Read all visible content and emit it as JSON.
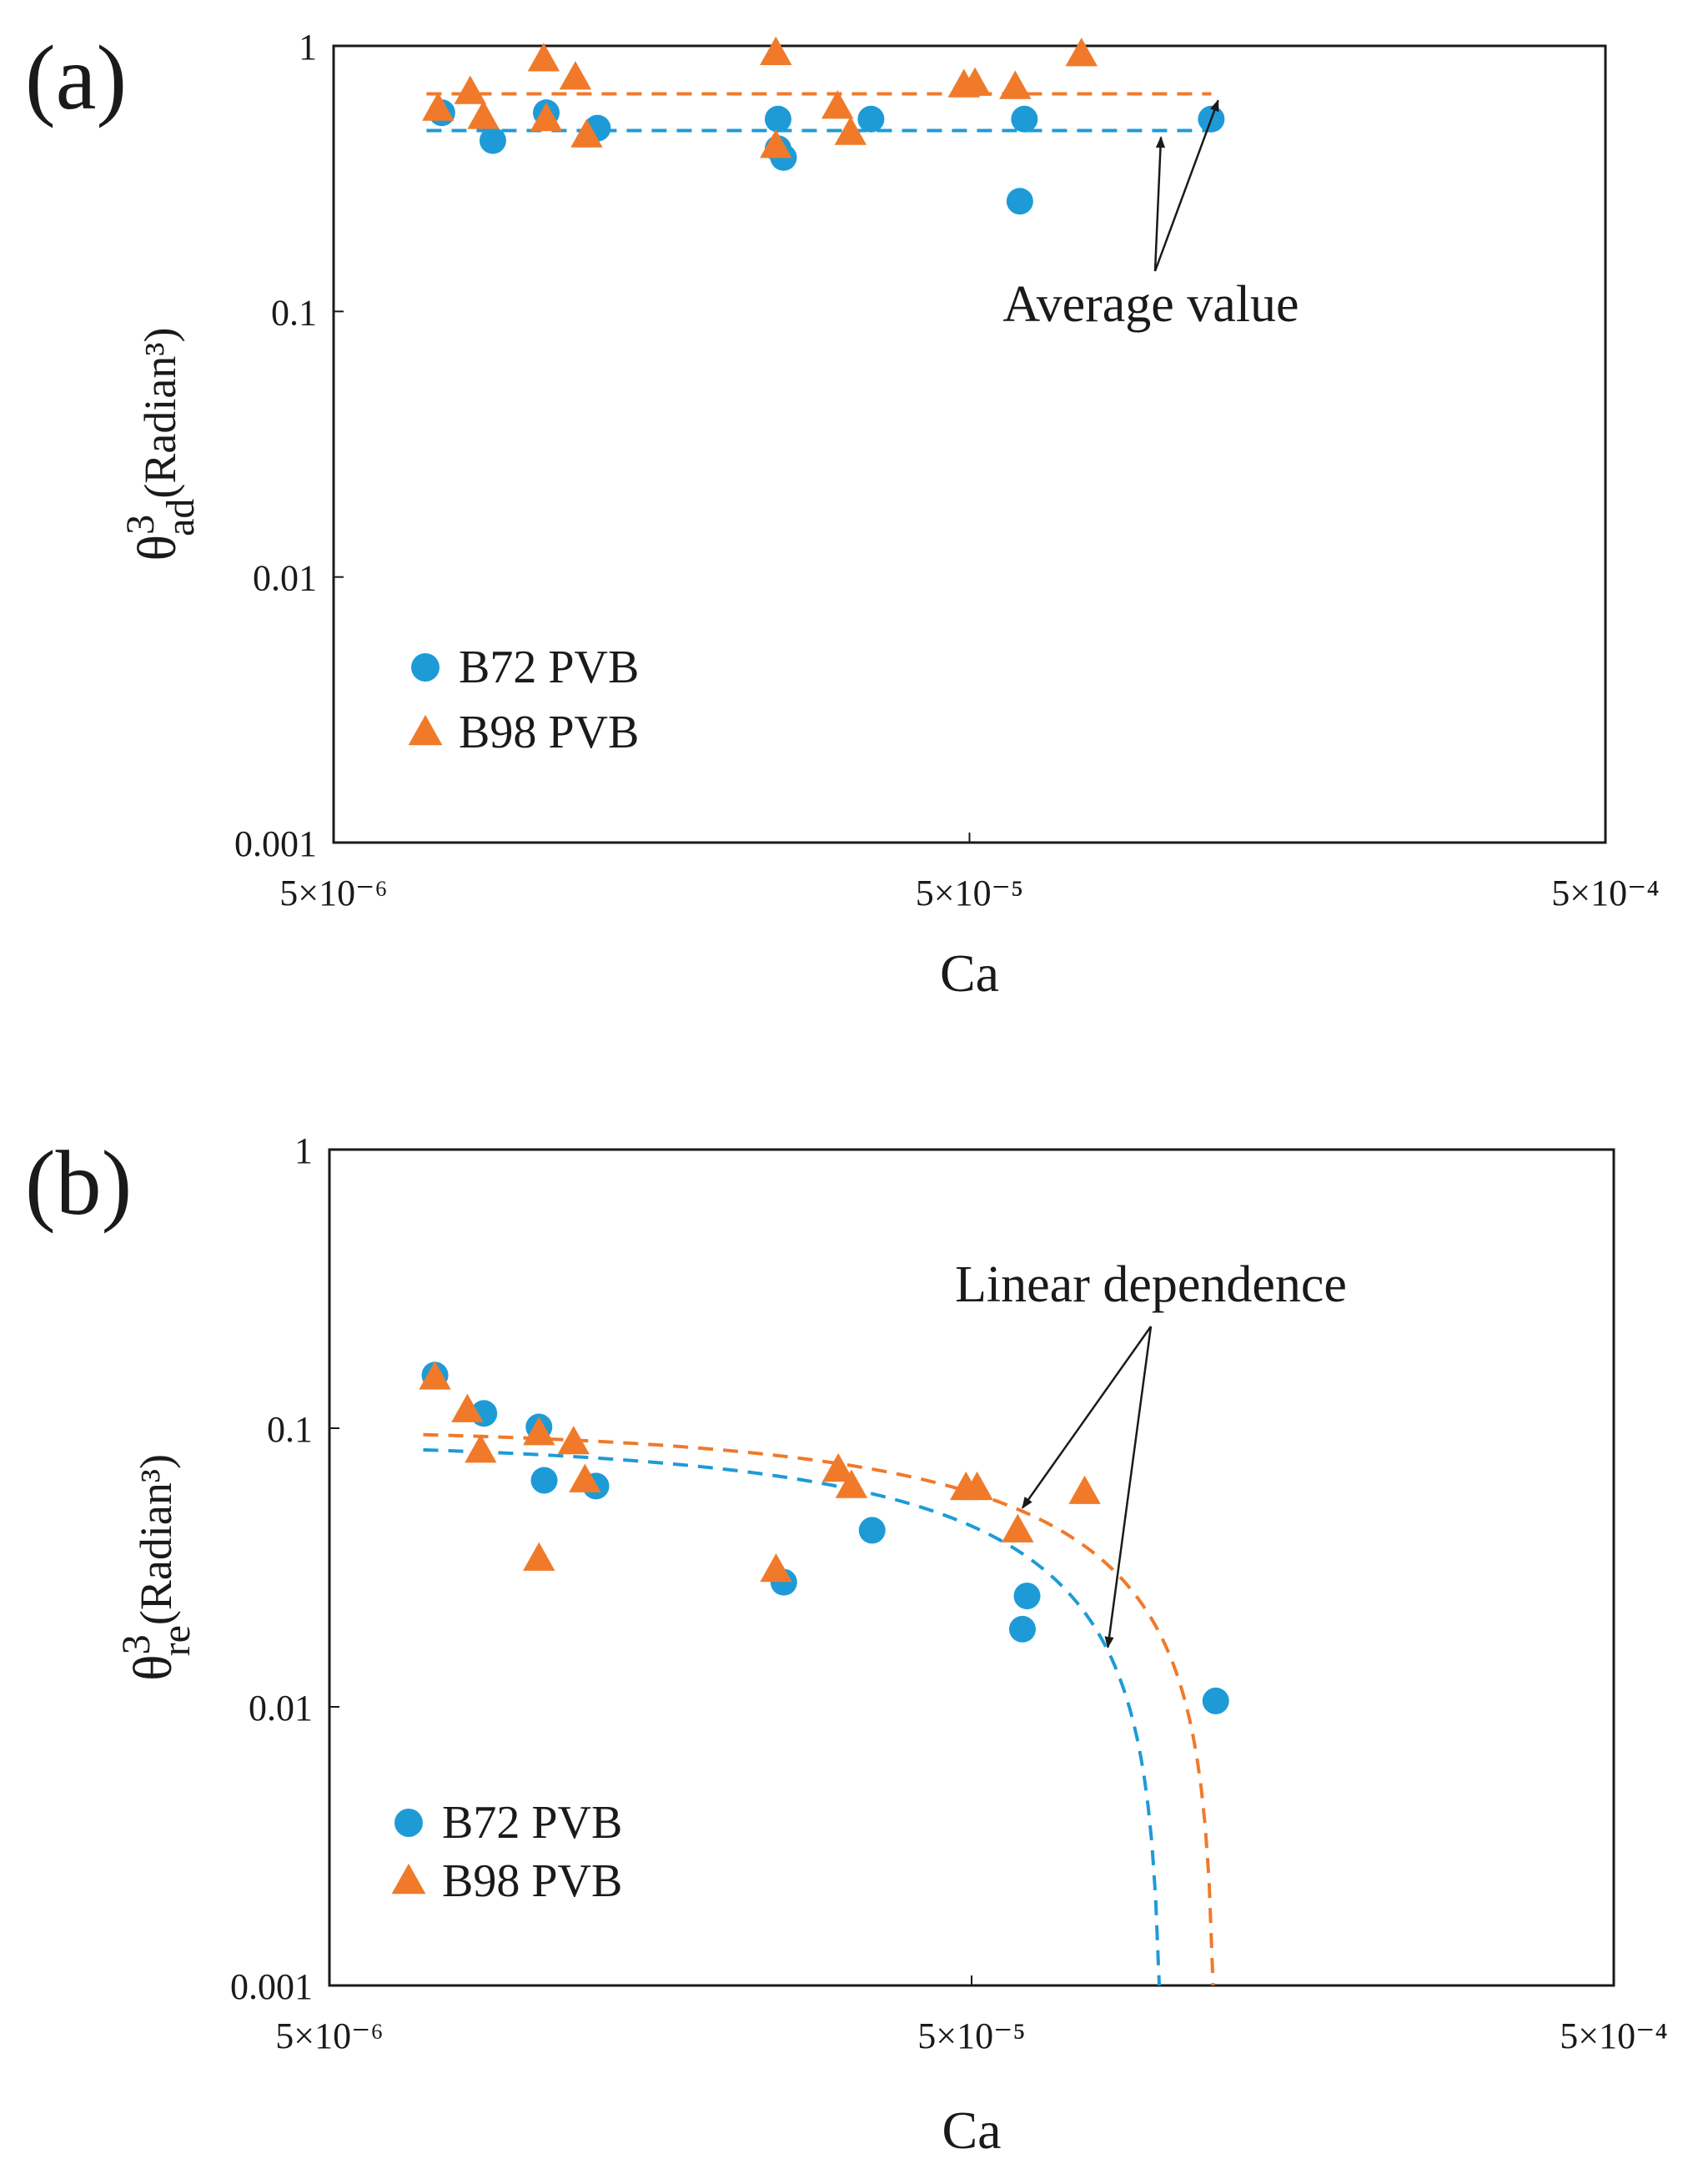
{
  "chart_data": [
    {
      "type": "scatter",
      "panel_label": "(a)",
      "xlabel": "Ca",
      "ylabel_main": "θ",
      "ylabel_sup": "3",
      "ylabel_sub": "ad",
      "ylabel_unit": "(Radian³)",
      "x_scale": "log",
      "y_scale": "log",
      "xlim": [
        5e-06,
        0.0005
      ],
      "ylim": [
        0.001,
        1
      ],
      "x_ticks": [
        {
          "value": 5e-06,
          "label": "5×10⁻⁶"
        },
        {
          "value": 5e-05,
          "label": "5×10⁻⁵"
        },
        {
          "value": 0.0005,
          "label": "5×10⁻⁴"
        }
      ],
      "y_ticks": [
        {
          "value": 1,
          "label": "1"
        },
        {
          "value": 0.1,
          "label": "0.1"
        },
        {
          "value": 0.01,
          "label": "0.01"
        },
        {
          "value": 0.001,
          "label": "0.001"
        }
      ],
      "legend_position": "bottom-left",
      "series": [
        {
          "name": "B72 PVB",
          "marker": "circle",
          "color": "#1e9bd7",
          "points": [
            [
              7.4e-06,
              0.56
            ],
            [
              8.9e-06,
              0.44
            ],
            [
              1.08e-05,
              0.56
            ],
            [
              1.3e-05,
              0.49
            ],
            [
              2.5e-05,
              0.53
            ],
            [
              2.5e-05,
              0.41
            ],
            [
              2.55e-05,
              0.38
            ],
            [
              3.5e-05,
              0.53
            ],
            [
              6.1e-05,
              0.53
            ],
            [
              6e-05,
              0.26
            ],
            [
              0.00012,
              0.53
            ]
          ]
        },
        {
          "name": "B98 PVB",
          "marker": "triangle",
          "color": "#f07a2a",
          "points": [
            [
              7.3e-06,
              0.58
            ],
            [
              8.2e-06,
              0.67
            ],
            [
              8.6e-06,
              0.54
            ],
            [
              1.07e-05,
              0.89
            ],
            [
              1.08e-05,
              0.53
            ],
            [
              1.2e-05,
              0.76
            ],
            [
              1.25e-05,
              0.46
            ],
            [
              2.48e-05,
              0.94
            ],
            [
              2.48e-05,
              0.42
            ],
            [
              3.1e-05,
              0.59
            ],
            [
              3.25e-05,
              0.47
            ],
            [
              4.9e-05,
              0.71
            ],
            [
              5.1e-05,
              0.72
            ],
            [
              5.9e-05,
              0.7
            ],
            [
              7.5e-05,
              0.93
            ]
          ]
        }
      ],
      "average_lines": [
        {
          "series": "B72 PVB",
          "value": 0.48,
          "x_range": [
            7e-06,
            0.00012
          ],
          "color": "#1e9bd7"
        },
        {
          "series": "B98 PVB",
          "value": 0.66,
          "x_range": [
            7e-06,
            0.00012
          ],
          "color": "#f07a2a"
        }
      ],
      "annotation": {
        "text": "Average value"
      }
    },
    {
      "type": "scatter",
      "panel_label": "(b)",
      "xlabel": "Ca",
      "ylabel_main": "θ",
      "ylabel_sup": "3",
      "ylabel_sub": "re",
      "ylabel_unit": "(Radian³)",
      "x_scale": "log",
      "y_scale": "log",
      "xlim": [
        5e-06,
        0.0005
      ],
      "ylim": [
        0.001,
        1
      ],
      "x_ticks": [
        {
          "value": 5e-06,
          "label": "5×10⁻⁶"
        },
        {
          "value": 5e-05,
          "label": "5×10⁻⁵"
        },
        {
          "value": 0.0005,
          "label": "5×10⁻⁴"
        }
      ],
      "y_ticks": [
        {
          "value": 1,
          "label": "1"
        },
        {
          "value": 0.1,
          "label": "0.1"
        },
        {
          "value": 0.01,
          "label": "0.01"
        },
        {
          "value": 0.001,
          "label": "0.001"
        }
      ],
      "legend_position": "bottom-left",
      "series": [
        {
          "name": "B72 PVB",
          "marker": "circle",
          "color": "#1e9bd7",
          "points": [
            [
              7.3e-06,
              0.155
            ],
            [
              8.7e-06,
              0.113
            ],
            [
              1.06e-05,
              0.101
            ],
            [
              1.08e-05,
              0.065
            ],
            [
              1.3e-05,
              0.062
            ],
            [
              2.55e-05,
              0.028
            ],
            [
              3.5e-05,
              0.043
            ],
            [
              6.1e-05,
              0.025
            ],
            [
              6e-05,
              0.019
            ],
            [
              0.00012,
              0.0105
            ]
          ]
        },
        {
          "name": "B98 PVB",
          "marker": "triangle",
          "color": "#f07a2a",
          "points": [
            [
              7.3e-06,
              0.152
            ],
            [
              8.2e-06,
              0.116
            ],
            [
              8.6e-06,
              0.083
            ],
            [
              1.06e-05,
              0.096
            ],
            [
              1.06e-05,
              0.034
            ],
            [
              1.2e-05,
              0.089
            ],
            [
              1.25e-05,
              0.065
            ],
            [
              2.48e-05,
              0.031
            ],
            [
              3.1e-05,
              0.071
            ],
            [
              3.25e-05,
              0.062
            ],
            [
              4.9e-05,
              0.061
            ],
            [
              5.1e-05,
              0.061
            ],
            [
              5.9e-05,
              0.043
            ],
            [
              7.5e-05,
              0.059
            ]
          ]
        }
      ],
      "fit_lines": [
        {
          "series": "B72 PVB",
          "model": "y = a*(x0 - x)",
          "a": 909,
          "x0": 9.9e-05,
          "x_range": [
            7e-06,
            9.8e-05
          ],
          "color": "#1e9bd7"
        },
        {
          "series": "B98 PVB",
          "model": "y = a*(x0 - x)",
          "a": 839,
          "x0": 0.00012,
          "x_range": [
            7e-06,
            0.00011885
          ],
          "color": "#f07a2a"
        }
      ],
      "annotation": {
        "text": "Linear dependence"
      }
    }
  ]
}
